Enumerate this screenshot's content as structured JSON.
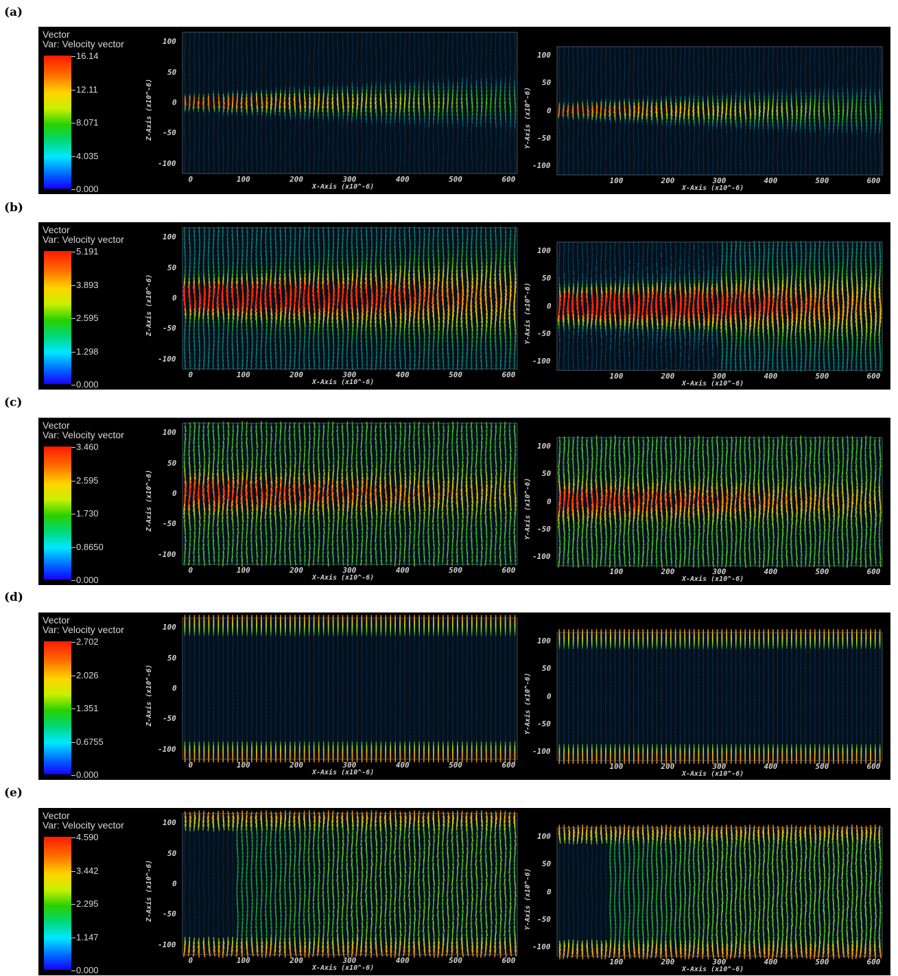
{
  "panels": [
    {
      "letter": "(a)",
      "legend_title": "Vector",
      "legend_var": "Var: Velocity vector",
      "scale": [
        "16.14",
        "12.11",
        "8.071",
        "4.035",
        "0.000"
      ],
      "mode": "jet_center"
    },
    {
      "letter": "(b)",
      "legend_title": "Vector",
      "legend_var": "Var: Velocity vector",
      "scale": [
        "5.191",
        "3.893",
        "2.595",
        "1.298",
        "0.000"
      ],
      "mode": "jet_wide"
    },
    {
      "letter": "(c)",
      "legend_title": "Vector",
      "legend_var": "Var: Velocity vector",
      "scale": [
        "3.460",
        "2.595",
        "1.730",
        "0.8650",
        "0.000"
      ],
      "mode": "turbulent"
    },
    {
      "letter": "(d)",
      "legend_title": "Vector",
      "legend_var": "Var: Velocity vector",
      "scale": [
        "2.702",
        "2.026",
        "1.351",
        "0.6755",
        "0.000"
      ],
      "mode": "walls"
    },
    {
      "letter": "(e)",
      "legend_title": "Vector",
      "legend_var": "Var: Velocity vector",
      "scale": [
        "4.590",
        "3.442",
        "2.295",
        "1.147",
        "0.000"
      ],
      "mode": "walls_mix"
    }
  ],
  "left_plot": {
    "ylabel": "Z-Axis (x10^-6)",
    "xlabel": "X-Axis (x10^-6)",
    "xticks": [
      "0",
      "100",
      "200",
      "300",
      "400",
      "500",
      "600"
    ],
    "yticks": [
      "100",
      "50",
      "0",
      "-50",
      "-100"
    ]
  },
  "right_plot": {
    "ylabel": "Y-Axis (x10^-6)",
    "xlabel": "X-Axis (x10^-6)",
    "xticks": [
      "100",
      "200",
      "300",
      "400",
      "500",
      "600"
    ],
    "yticks": [
      "100",
      "50",
      "0",
      "-50",
      "-100"
    ]
  }
}
